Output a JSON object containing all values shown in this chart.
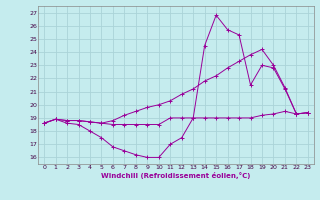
{
  "xlabel": "Windchill (Refroidissement éolien,°C)",
  "background_color": "#c5ecee",
  "grid_color": "#aad4d8",
  "line_color": "#990099",
  "xlim": [
    -0.5,
    23.5
  ],
  "ylim": [
    15.5,
    27.5
  ],
  "yticks": [
    16,
    17,
    18,
    19,
    20,
    21,
    22,
    23,
    24,
    25,
    26,
    27
  ],
  "xticks": [
    0,
    1,
    2,
    3,
    4,
    5,
    6,
    7,
    8,
    9,
    10,
    11,
    12,
    13,
    14,
    15,
    16,
    17,
    18,
    19,
    20,
    21,
    22,
    23
  ],
  "series": [
    {
      "x": [
        0,
        1,
        2,
        3,
        4,
        5,
        6,
        7,
        8,
        9,
        10,
        11,
        12,
        13,
        14,
        15,
        16,
        17,
        18,
        19,
        20,
        21,
        22,
        23
      ],
      "y": [
        18.6,
        18.9,
        18.8,
        18.8,
        18.7,
        18.6,
        18.5,
        18.5,
        18.5,
        18.5,
        18.5,
        19.0,
        19.0,
        19.0,
        19.0,
        19.0,
        19.0,
        19.0,
        19.0,
        19.2,
        19.3,
        19.5,
        19.3,
        19.4
      ]
    },
    {
      "x": [
        0,
        1,
        2,
        3,
        4,
        5,
        6,
        7,
        8,
        9,
        10,
        11,
        12,
        13,
        14,
        15,
        16,
        17,
        18,
        19,
        20,
        21,
        22,
        23
      ],
      "y": [
        18.6,
        18.9,
        18.8,
        18.8,
        18.7,
        18.6,
        18.8,
        19.2,
        19.5,
        19.8,
        20.0,
        20.3,
        20.8,
        21.2,
        21.8,
        22.2,
        22.8,
        23.3,
        23.8,
        24.2,
        23.0,
        21.3,
        19.3,
        19.4
      ]
    },
    {
      "x": [
        0,
        1,
        2,
        3,
        4,
        5,
        6,
        7,
        8,
        9,
        10,
        11,
        12,
        13,
        14,
        15,
        16,
        17,
        18,
        19,
        20,
        21,
        22,
        23
      ],
      "y": [
        18.6,
        18.9,
        18.6,
        18.5,
        18.0,
        17.5,
        16.8,
        16.5,
        16.2,
        16.0,
        16.0,
        17.0,
        17.5,
        19.0,
        24.5,
        26.8,
        25.7,
        25.3,
        21.5,
        23.0,
        22.8,
        21.2,
        19.3,
        19.4
      ]
    }
  ]
}
